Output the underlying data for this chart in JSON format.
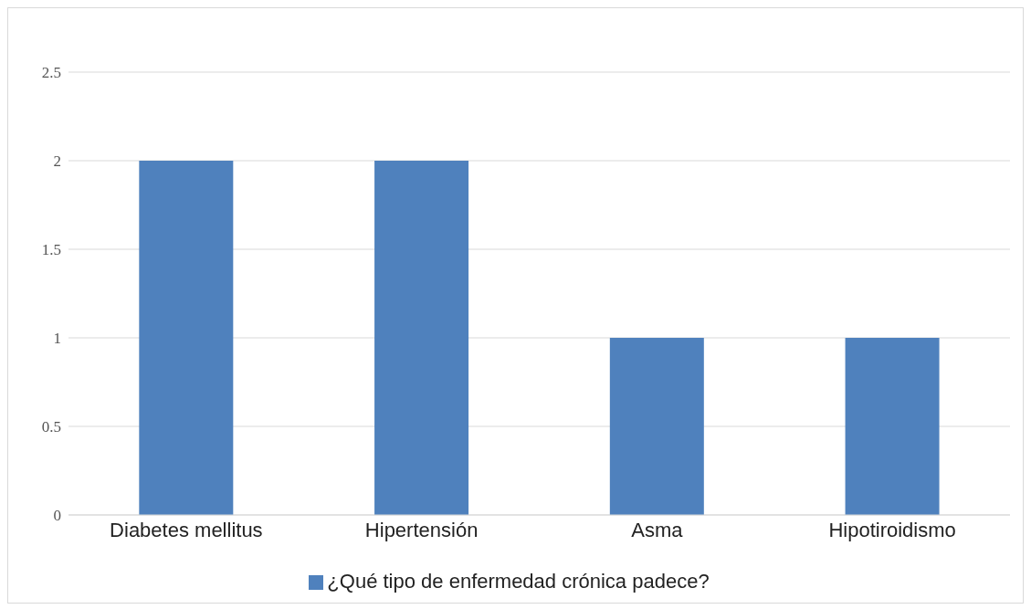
{
  "chart_data": {
    "type": "bar",
    "categories": [
      "Diabetes mellitus",
      "Hipertensión",
      "Asma",
      "Hipotiroidismo"
    ],
    "series": [
      {
        "name": "¿Qué tipo de enfermedad crónica padece?",
        "color": "#4f81bd",
        "values": [
          2,
          2,
          1,
          1
        ]
      }
    ],
    "ylim": [
      0,
      2.5
    ],
    "yticks": [
      0,
      0.5,
      1,
      1.5,
      2,
      2.5
    ],
    "grid": "y",
    "legend": "bottom"
  }
}
